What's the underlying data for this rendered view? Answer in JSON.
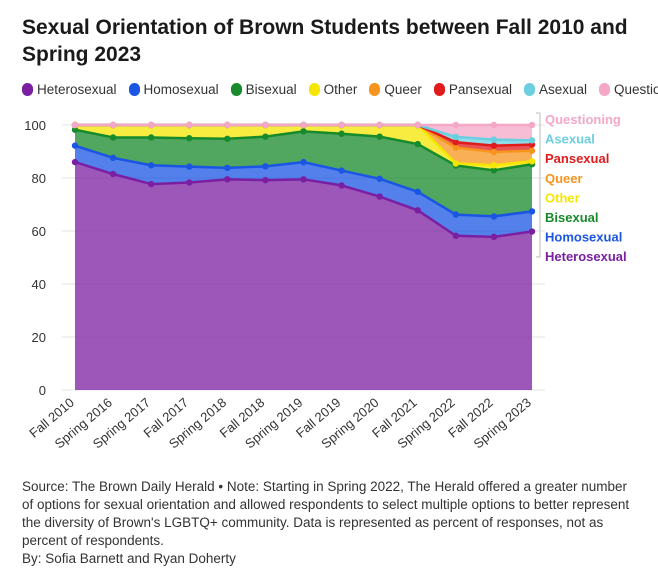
{
  "note": "Source: The Brown Daily Herald • Note: Starting in Spring 2022, The Herald offered a greater number of options for sexual orientation and allowed respondents to select multiple options to better represent the diversity of Brown's LGBTQ+ community. Data is represented as percent of responses, not as percent of respondents.",
  "byline": "By: Sofia Barnett and Ryan Doherty",
  "chart_data": {
    "type": "area",
    "stacked": true,
    "title": "Sexual Orientation of Brown Students between Fall 2010 and Spring 2023",
    "categories": [
      "Fall 2010",
      "Spring 2016",
      "Spring 2017",
      "Fall 2017",
      "Spring 2018",
      "Fall 2018",
      "Spring 2019",
      "Fall 2019",
      "Spring 2020",
      "Fall 2021",
      "Spring 2022",
      "Fall 2022",
      "Spring 2023"
    ],
    "ylim": [
      0,
      100
    ],
    "yticks": [
      0,
      20,
      40,
      60,
      80,
      100
    ],
    "grid": true,
    "legend_position": "top",
    "series": [
      {
        "name": "Heterosexual",
        "color": "#7b1fa2",
        "cumulative": [
          86,
          81.5,
          77.7,
          78.3,
          79.5,
          79.2,
          79.5,
          77.2,
          73,
          67.8,
          58.2,
          57.8,
          59.8
        ]
      },
      {
        "name": "Homosexual",
        "color": "#1a55e3",
        "cumulative": [
          92.2,
          87.6,
          84.8,
          84.3,
          83.8,
          84.4,
          86,
          82.8,
          79.7,
          74.8,
          66.2,
          65.5,
          67.4
        ]
      },
      {
        "name": "Bisexual",
        "color": "#178a2b",
        "cumulative": [
          98.2,
          95.3,
          95.3,
          95,
          94.8,
          95.6,
          97.6,
          96.7,
          95.6,
          92.8,
          84.7,
          82.9,
          85.2
        ]
      },
      {
        "name": "Other",
        "color": "#f5e600",
        "cumulative": [
          100,
          100,
          100,
          100,
          100,
          100,
          100,
          100,
          100,
          100,
          85.5,
          84.8,
          86.3
        ]
      },
      {
        "name": "Queer",
        "color": "#f7941d",
        "cumulative": [
          100,
          100,
          100,
          100,
          100,
          100,
          100,
          100,
          100,
          100,
          91.5,
          89.8,
          90.3
        ]
      },
      {
        "name": "Pansexual",
        "color": "#e01b1b",
        "cumulative": [
          100,
          100,
          100,
          100,
          100,
          100,
          100,
          100,
          100,
          100,
          93.5,
          92.2,
          92.6
        ]
      },
      {
        "name": "Asexual",
        "color": "#6ccfe0",
        "cumulative": [
          100,
          100,
          100,
          100,
          100,
          100,
          100,
          100,
          100,
          100,
          95.5,
          94.5,
          94.2
        ]
      },
      {
        "name": "Questioning",
        "color": "#f4a7c6",
        "cumulative": [
          100,
          100,
          100,
          100,
          100,
          100,
          100,
          100,
          100,
          100,
          100,
          100,
          100
        ]
      }
    ],
    "end_labels": [
      {
        "text": "Questioning",
        "color": "#f4a7c6"
      },
      {
        "text": "Asexual",
        "color": "#6ccfe0"
      },
      {
        "text": "Pansexual",
        "color": "#e01b1b"
      },
      {
        "text": "Queer",
        "color": "#f7941d"
      },
      {
        "text": "Other",
        "color": "#f5e600"
      },
      {
        "text": "Bisexual",
        "color": "#178a2b"
      },
      {
        "text": "Homosexual",
        "color": "#1a55e3"
      },
      {
        "text": "Heterosexual",
        "color": "#7b1fa2"
      }
    ]
  }
}
